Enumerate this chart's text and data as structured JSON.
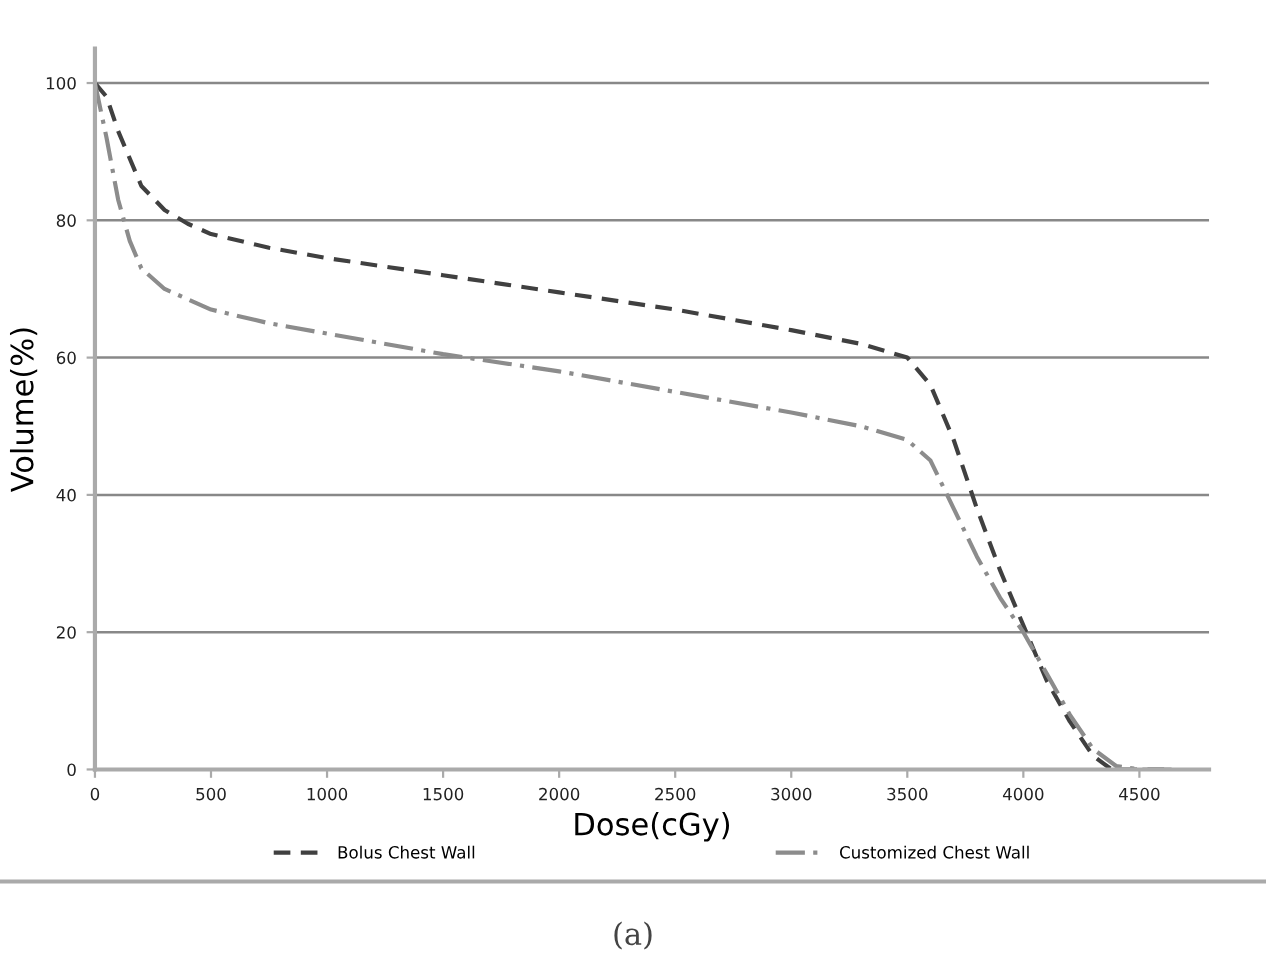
{
  "chart_data": {
    "type": "line",
    "xlabel": "Dose(cGy)",
    "ylabel": "Volume(%)",
    "xlim": [
      0,
      4800
    ],
    "ylim": [
      0,
      105
    ],
    "xticks": [
      0,
      500,
      1000,
      1500,
      2000,
      2500,
      3000,
      3500,
      4000,
      4500
    ],
    "yticks": [
      0,
      20,
      40,
      60,
      80,
      100
    ],
    "grid": "y",
    "legend": "bottom",
    "marker": "none",
    "annotations": [
      "(a)"
    ],
    "series": [
      {
        "name": "Bolus Chest Wall",
        "color": "#404040",
        "line_style": "dashed",
        "x": [
          0,
          50,
          100,
          200,
          300,
          400,
          500,
          750,
          1000,
          1500,
          2000,
          2500,
          3000,
          3300,
          3500,
          3600,
          3700,
          3800,
          3900,
          4000,
          4100,
          4200,
          4300,
          4380,
          4500,
          4650
        ],
        "values": [
          100,
          98,
          93,
          85,
          81.5,
          79.5,
          78,
          76,
          74.5,
          72,
          69.5,
          67,
          64,
          62,
          60,
          56,
          48,
          38,
          29,
          21,
          13,
          7,
          2,
          0,
          0,
          0
        ]
      },
      {
        "name": "Customized Chest Wall",
        "color": "#8c8c8c",
        "line_style": "dashdot",
        "x": [
          0,
          50,
          100,
          150,
          200,
          300,
          500,
          750,
          1000,
          1500,
          2000,
          2500,
          3000,
          3300,
          3500,
          3600,
          3700,
          3800,
          3900,
          4000,
          4100,
          4200,
          4300,
          4400,
          4500,
          4650
        ],
        "values": [
          100,
          92,
          83,
          77,
          73,
          70,
          67,
          65,
          63.5,
          60.5,
          58,
          55,
          52,
          50,
          48,
          45,
          38,
          31,
          25,
          20,
          14,
          8,
          3,
          0.5,
          0,
          0
        ]
      }
    ]
  }
}
